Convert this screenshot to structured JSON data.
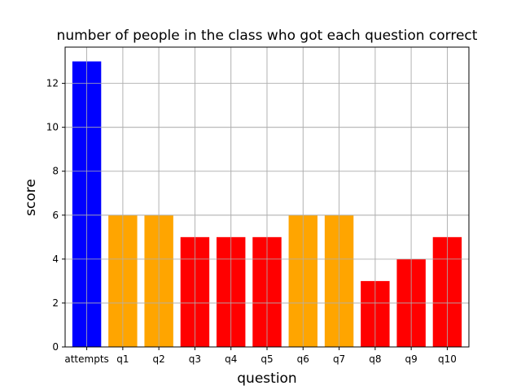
{
  "chart_data": {
    "type": "bar",
    "title": "number of people in the class who got each question correct",
    "xlabel": "question",
    "ylabel": "score",
    "categories": [
      "attempts",
      "q1",
      "q2",
      "q3",
      "q4",
      "q5",
      "q6",
      "q7",
      "q8",
      "q9",
      "q10"
    ],
    "values": [
      13,
      6,
      6,
      5,
      5,
      5,
      6,
      6,
      3,
      4,
      5
    ],
    "colors": [
      "#0000ff",
      "#ffa500",
      "#ffa500",
      "#ff0000",
      "#ff0000",
      "#ff0000",
      "#ffa500",
      "#ffa500",
      "#ff0000",
      "#ff0000",
      "#ff0000"
    ],
    "ylim": [
      0,
      13.65
    ],
    "yticks": [
      0,
      2,
      4,
      6,
      8,
      10,
      12
    ],
    "grid": true
  }
}
